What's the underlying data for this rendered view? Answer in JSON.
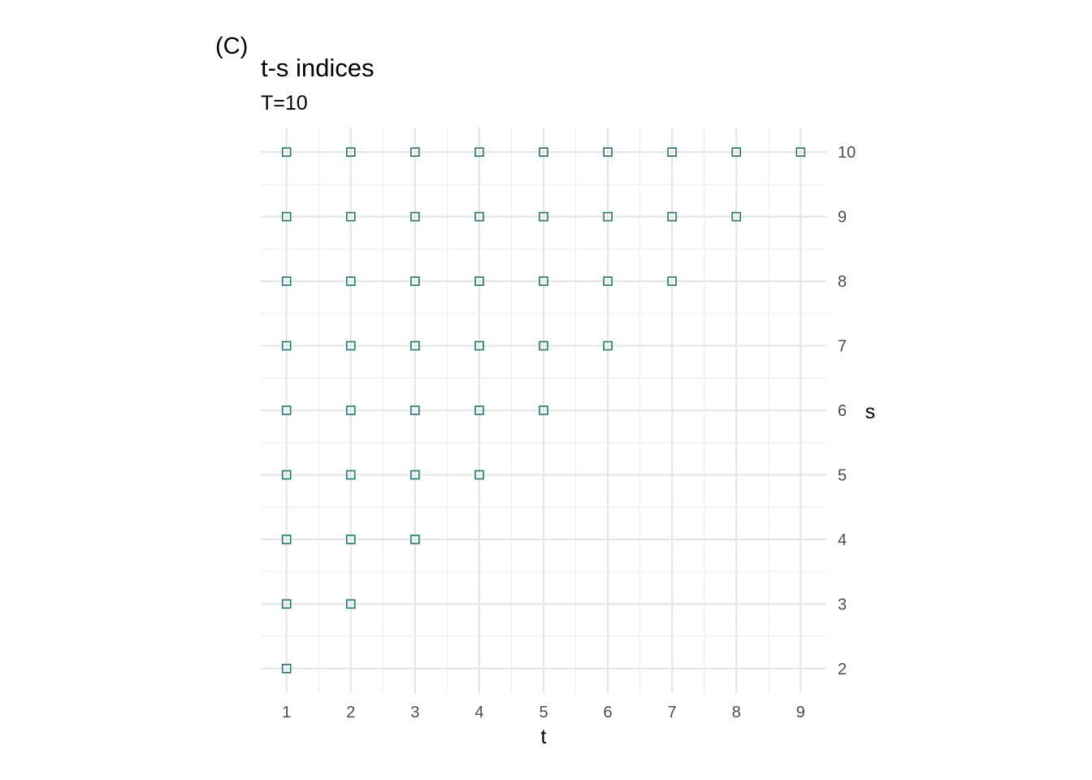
{
  "panel_tag": "(C)",
  "chart_data": {
    "type": "scatter",
    "title": "t-s indices",
    "subtitle": "T=10",
    "xlabel": "t",
    "ylabel": "s",
    "xlim": [
      0.6,
      9.4
    ],
    "ylim": [
      1.62,
      10.38
    ],
    "x_ticks": [
      1,
      2,
      3,
      4,
      5,
      6,
      7,
      8,
      9
    ],
    "y_ticks": [
      2,
      3,
      4,
      5,
      6,
      7,
      8,
      9,
      10
    ],
    "y_axis_position": "right",
    "grid": true,
    "marker": "open-square",
    "marker_color": "#1b7a72",
    "points": [
      {
        "t": 1,
        "s": 2
      },
      {
        "t": 1,
        "s": 3
      },
      {
        "t": 2,
        "s": 3
      },
      {
        "t": 1,
        "s": 4
      },
      {
        "t": 2,
        "s": 4
      },
      {
        "t": 3,
        "s": 4
      },
      {
        "t": 1,
        "s": 5
      },
      {
        "t": 2,
        "s": 5
      },
      {
        "t": 3,
        "s": 5
      },
      {
        "t": 4,
        "s": 5
      },
      {
        "t": 1,
        "s": 6
      },
      {
        "t": 2,
        "s": 6
      },
      {
        "t": 3,
        "s": 6
      },
      {
        "t": 4,
        "s": 6
      },
      {
        "t": 5,
        "s": 6
      },
      {
        "t": 1,
        "s": 7
      },
      {
        "t": 2,
        "s": 7
      },
      {
        "t": 3,
        "s": 7
      },
      {
        "t": 4,
        "s": 7
      },
      {
        "t": 5,
        "s": 7
      },
      {
        "t": 6,
        "s": 7
      },
      {
        "t": 1,
        "s": 8
      },
      {
        "t": 2,
        "s": 8
      },
      {
        "t": 3,
        "s": 8
      },
      {
        "t": 4,
        "s": 8
      },
      {
        "t": 5,
        "s": 8
      },
      {
        "t": 6,
        "s": 8
      },
      {
        "t": 7,
        "s": 8
      },
      {
        "t": 1,
        "s": 9
      },
      {
        "t": 2,
        "s": 9
      },
      {
        "t": 3,
        "s": 9
      },
      {
        "t": 4,
        "s": 9
      },
      {
        "t": 5,
        "s": 9
      },
      {
        "t": 6,
        "s": 9
      },
      {
        "t": 7,
        "s": 9
      },
      {
        "t": 8,
        "s": 9
      },
      {
        "t": 1,
        "s": 10
      },
      {
        "t": 2,
        "s": 10
      },
      {
        "t": 3,
        "s": 10
      },
      {
        "t": 4,
        "s": 10
      },
      {
        "t": 5,
        "s": 10
      },
      {
        "t": 6,
        "s": 10
      },
      {
        "t": 7,
        "s": 10
      },
      {
        "t": 8,
        "s": 10
      },
      {
        "t": 9,
        "s": 10
      }
    ]
  }
}
